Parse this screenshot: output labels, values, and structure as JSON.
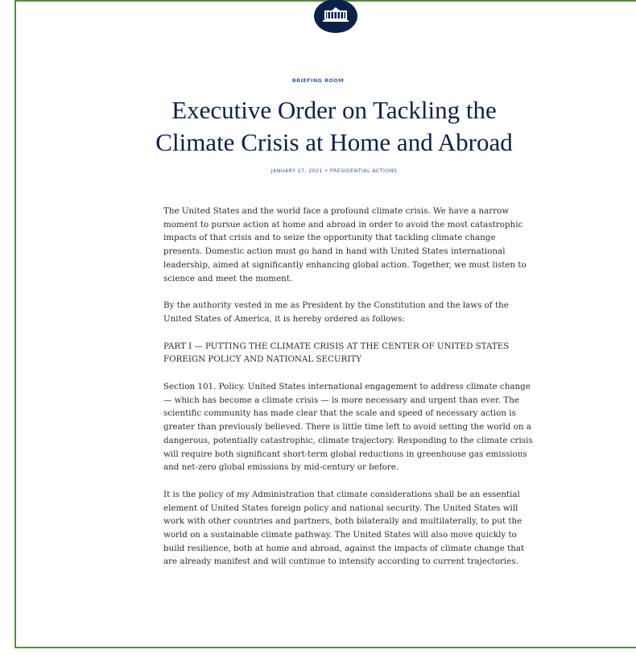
{
  "header": {
    "section": "BRIEFING ROOM",
    "title_lines": [
      "Executive Order on Tackling the",
      "Climate Crisis at Home and Abroad"
    ],
    "meta": "JANUARY 27, 2021 • PRESIDENTIAL ACTIONS"
  },
  "body": {
    "paragraphs": [
      "The United States and the world face a profound climate crisis.  We have a narrow moment to pursue action at home and abroad in order to avoid the most catastrophic impacts of that crisis and to seize the opportunity that tackling climate change presents.  Domestic action must go hand in hand with United States international leadership, aimed at significantly enhancing global action.  Together, we must listen to science and meet the moment.",
      "By the authority vested in me as President by the Constitution and the laws of the United States of America, it is hereby ordered as follows:",
      "PART I — PUTTING THE CLIMATE CRISIS AT THE CENTER OF UNITED STATES FOREIGN POLICY AND NATIONAL SECURITY",
      "Section 101.  Policy.  United States international engagement to address climate change — which has become a climate crisis — is more necessary and urgent than ever.  The scientific community has made clear that the scale and speed of necessary action is greater than previously believed.  There is little time left to avoid setting the world on a dangerous, potentially catastrophic, climate trajectory.  Responding to the climate crisis will require both significant short-term global reductions in greenhouse gas emissions and net-zero global emissions by mid-century or before.",
      "It is the policy of my Administration that climate considerations shall be an essential element of United States foreign policy and national security.  The United States will work with other countries and partners, both bilaterally and multilaterally, to put the world on a sustainable climate pathway.  The United States will also move quickly to build resilience, both at home and abroad, against the impacts of climate change that are already manifest and will continue to intensify according to current trajectories."
    ]
  }
}
